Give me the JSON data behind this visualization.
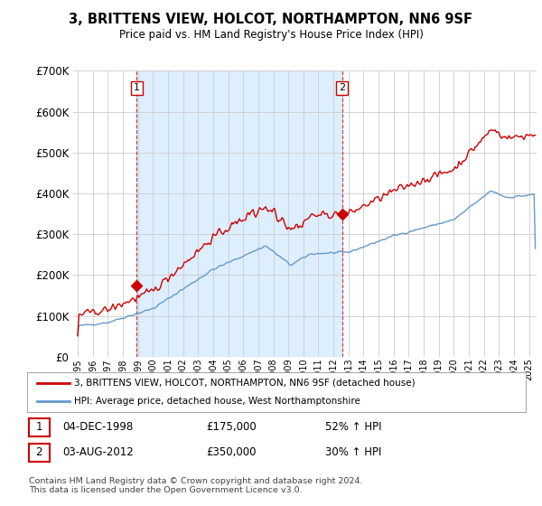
{
  "title": "3, BRITTENS VIEW, HOLCOT, NORTHAMPTON, NN6 9SF",
  "subtitle": "Price paid vs. HM Land Registry's House Price Index (HPI)",
  "legend_line1": "3, BRITTENS VIEW, HOLCOT, NORTHAMPTON, NN6 9SF (detached house)",
  "legend_line2": "HPI: Average price, detached house, West Northamptonshire",
  "footnote": "Contains HM Land Registry data © Crown copyright and database right 2024.\nThis data is licensed under the Open Government Licence v3.0.",
  "sale1_label": "1",
  "sale1_date": "04-DEC-1998",
  "sale1_price": "£175,000",
  "sale1_hpi": "52% ↑ HPI",
  "sale2_label": "2",
  "sale2_date": "03-AUG-2012",
  "sale2_price": "£350,000",
  "sale2_hpi": "30% ↑ HPI",
  "red_color": "#cc0000",
  "blue_color": "#6699cc",
  "shade_color": "#ddeeff",
  "grid_color": "#cccccc",
  "bg_color": "#ffffff",
  "sale1_year": 1998.92,
  "sale1_value": 175000,
  "sale2_year": 2012.58,
  "sale2_value": 350000,
  "ylim": [
    0,
    700000
  ],
  "xlim_start": 1995,
  "xlim_end": 2025.5
}
